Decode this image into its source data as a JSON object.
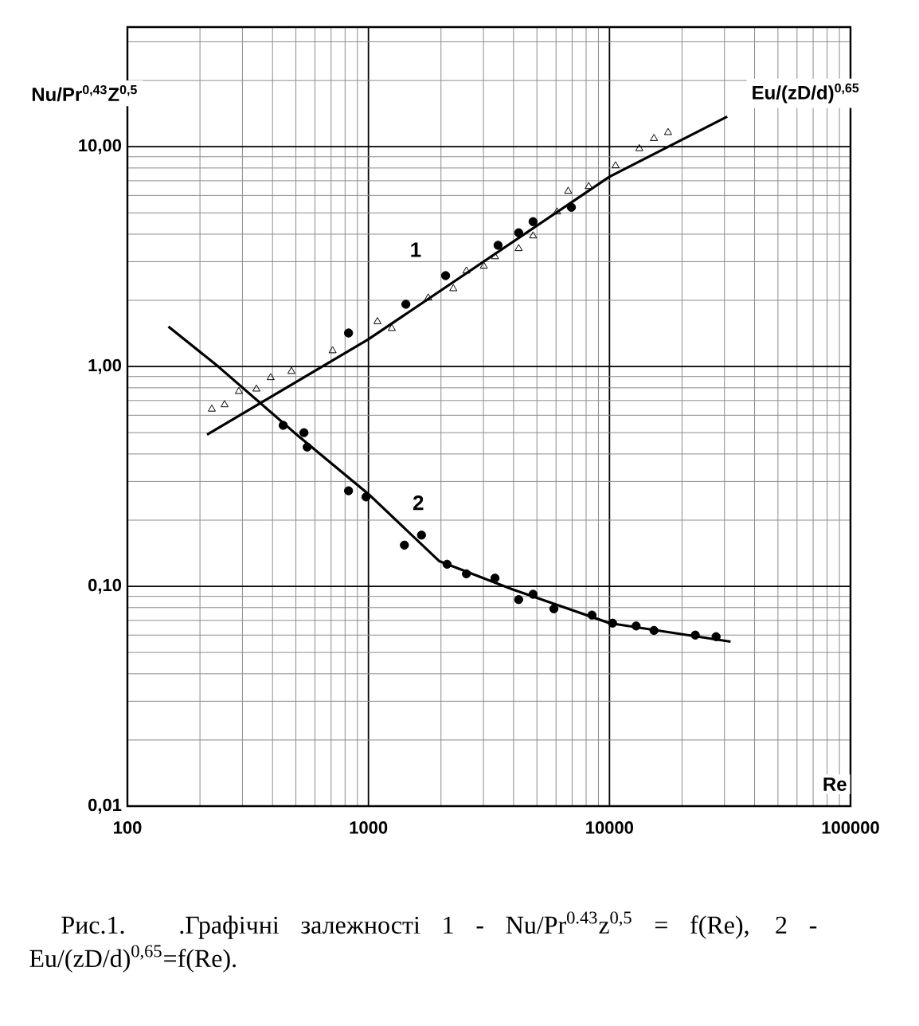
{
  "chart_data": {
    "type": "line",
    "ylabel": "Nu/Pr$^{0,43}$Z$^{0,5}$",
    "xlabel": "Re",
    "log": "xy",
    "grid": true,
    "xlim": [
      100,
      100000
    ],
    "ylim": [
      0.01,
      35
    ],
    "xticks": [
      100,
      1000,
      10000,
      100000
    ],
    "yticks": [
      {
        "value": 0.01,
        "label": "0,01"
      },
      {
        "value": 0.1,
        "label": "0,10"
      },
      {
        "value": 1,
        "label": "1,00"
      },
      {
        "value": 10,
        "label": "10,00"
      }
    ],
    "annotations": [
      {
        "text": "1",
        "x": 1570,
        "y": 3.4
      },
      {
        "text": "2",
        "x": 1610,
        "y": 0.24
      },
      "Eu/(zD/d)$^{0,65}$",
      "Рис.1. .Графічні залежності 1 - Nu/Pr$^{0.43}$z$^{0,5}$ = f(Re),   2 - Eu/(zD/d)$^{0,65}$=f(Re)."
    ],
    "series": [
      {
        "type": "scatter",
        "marker": "triangle",
        "color": "#000000",
        "x": [
          224,
          253,
          290,
          343,
          393,
          479,
          710,
          1090,
          1250,
          1770,
          2250,
          2550,
          3010,
          3350,
          4200,
          4820,
          6060,
          6740,
          8200,
          10600,
          13300,
          15300,
          17500
        ],
        "values": [
          0.64,
          0.67,
          0.77,
          0.79,
          0.89,
          0.95,
          1.18,
          1.6,
          1.49,
          2.05,
          2.26,
          2.72,
          2.86,
          3.16,
          3.44,
          3.93,
          5.05,
          6.27,
          6.59,
          8.19,
          9.8,
          10.9,
          11.6
        ]
      },
      {
        "type": "scatter",
        "marker": "circle",
        "color": "#000000",
        "x": [
          827,
          1430,
          2090,
          3450,
          4200,
          4820,
          6950
        ],
        "values": [
          1.42,
          1.92,
          2.59,
          3.56,
          4.06,
          4.56,
          5.3
        ]
      },
      {
        "type": "line",
        "marker": "none",
        "color": "#000000",
        "x": [
          214,
          1000,
          10000,
          30800
        ],
        "values": [
          0.49,
          1.33,
          7.3,
          13.7
        ]
      },
      {
        "type": "scatter",
        "marker": "circle",
        "color": "#000000",
        "x": [
          827,
          1410,
          2120,
          3350,
          4820,
          8460,
          15300
        ],
        "values": [
          0.272,
          0.154,
          0.126,
          0.109,
          0.092,
          0.074,
          0.063
        ]
      },
      {
        "type": "scatter",
        "marker": "circle",
        "color": "#000000",
        "x": [
          443,
          540,
          557,
          977,
          1660,
          2550,
          4200,
          5880,
          10300,
          12900,
          22700,
          27700
        ],
        "values": [
          0.54,
          0.5,
          0.43,
          0.255,
          0.171,
          0.114,
          0.087,
          0.079,
          0.068,
          0.066,
          0.06,
          0.059
        ]
      },
      {
        "type": "line",
        "marker": "none",
        "color": "#000000",
        "x": [
          148,
          238,
          493,
          1000,
          1970,
          3950,
          10000,
          31800
        ],
        "values": [
          1.52,
          1.0,
          0.5,
          0.263,
          0.13,
          0.097,
          0.068,
          0.056
        ]
      }
    ]
  }
}
